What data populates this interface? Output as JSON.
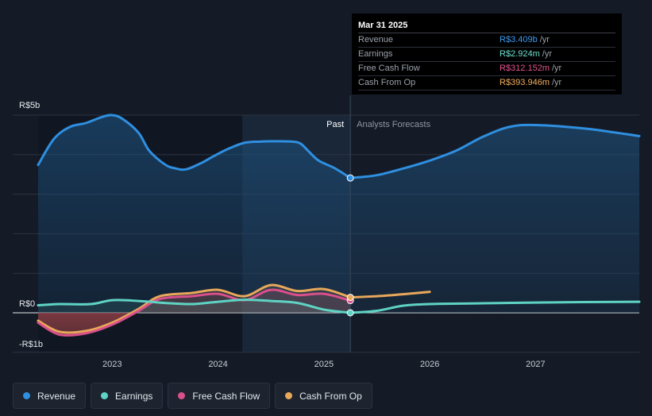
{
  "chart_data": {
    "type": "line",
    "y_labels": [
      "R$5b",
      "R$0",
      "-R$1b"
    ],
    "ylim": [
      -1,
      5
    ],
    "xlim": [
      2022.3,
      2027.98
    ],
    "x_ticks": [
      {
        "value": 2023,
        "label": "2023"
      },
      {
        "value": 2024,
        "label": "2024"
      },
      {
        "value": 2025,
        "label": "2025"
      },
      {
        "value": 2026,
        "label": "2026"
      },
      {
        "value": 2027,
        "label": "2027"
      }
    ],
    "grid": true,
    "past_label": "Past",
    "forecast_label": "Analysts Forecasts",
    "divider_x": 2025.25,
    "shade_start_x": 2024.23,
    "series": [
      {
        "name": "Revenue",
        "color": "#2f8fe0",
        "points": [
          [
            2022.3,
            3.74
          ],
          [
            2022.45,
            4.4
          ],
          [
            2022.6,
            4.7
          ],
          [
            2022.75,
            4.8
          ],
          [
            2022.9,
            4.95
          ],
          [
            2023.0,
            5.0
          ],
          [
            2023.1,
            4.9
          ],
          [
            2023.25,
            4.55
          ],
          [
            2023.35,
            4.1
          ],
          [
            2023.5,
            3.75
          ],
          [
            2023.6,
            3.65
          ],
          [
            2023.7,
            3.63
          ],
          [
            2023.85,
            3.8
          ],
          [
            2023.95,
            3.95
          ],
          [
            2024.1,
            4.15
          ],
          [
            2024.25,
            4.3
          ],
          [
            2024.4,
            4.33
          ],
          [
            2024.55,
            4.34
          ],
          [
            2024.7,
            4.33
          ],
          [
            2024.78,
            4.28
          ],
          [
            2024.85,
            4.1
          ],
          [
            2024.95,
            3.85
          ],
          [
            2025.1,
            3.66
          ],
          [
            2025.25,
            3.41
          ]
        ],
        "forecast": [
          [
            2025.25,
            3.41
          ],
          [
            2025.5,
            3.48
          ],
          [
            2025.75,
            3.65
          ],
          [
            2026.0,
            3.85
          ],
          [
            2026.25,
            4.1
          ],
          [
            2026.5,
            4.45
          ],
          [
            2026.75,
            4.7
          ],
          [
            2027.0,
            4.75
          ],
          [
            2027.5,
            4.65
          ],
          [
            2027.98,
            4.47
          ]
        ]
      },
      {
        "name": "Earnings",
        "color": "#5fd3c3",
        "points": [
          [
            2022.3,
            0.19
          ],
          [
            2022.5,
            0.22
          ],
          [
            2022.8,
            0.22
          ],
          [
            2023.0,
            0.32
          ],
          [
            2023.25,
            0.3
          ],
          [
            2023.5,
            0.25
          ],
          [
            2023.75,
            0.22
          ],
          [
            2024.0,
            0.28
          ],
          [
            2024.25,
            0.33
          ],
          [
            2024.5,
            0.3
          ],
          [
            2024.75,
            0.25
          ],
          [
            2025.0,
            0.08
          ],
          [
            2025.25,
            0.0
          ]
        ],
        "forecast": [
          [
            2025.25,
            0.0
          ],
          [
            2025.5,
            0.05
          ],
          [
            2025.75,
            0.18
          ],
          [
            2026.0,
            0.22
          ],
          [
            2026.5,
            0.24
          ],
          [
            2027.0,
            0.26
          ],
          [
            2027.98,
            0.28
          ]
        ]
      },
      {
        "name": "Free Cash Flow",
        "color": "#d9508b",
        "points": [
          [
            2022.3,
            -0.25
          ],
          [
            2022.5,
            -0.55
          ],
          [
            2022.75,
            -0.52
          ],
          [
            2023.0,
            -0.3
          ],
          [
            2023.25,
            0.05
          ],
          [
            2023.45,
            0.35
          ],
          [
            2023.75,
            0.42
          ],
          [
            2024.0,
            0.48
          ],
          [
            2024.25,
            0.32
          ],
          [
            2024.5,
            0.58
          ],
          [
            2024.75,
            0.45
          ],
          [
            2025.0,
            0.48
          ],
          [
            2025.25,
            0.31
          ]
        ],
        "forecast": []
      },
      {
        "name": "Cash From Op",
        "color": "#e8a85a",
        "points": [
          [
            2022.3,
            -0.2
          ],
          [
            2022.5,
            -0.48
          ],
          [
            2022.75,
            -0.46
          ],
          [
            2023.0,
            -0.25
          ],
          [
            2023.25,
            0.1
          ],
          [
            2023.45,
            0.42
          ],
          [
            2023.75,
            0.5
          ],
          [
            2024.0,
            0.58
          ],
          [
            2024.25,
            0.42
          ],
          [
            2024.5,
            0.7
          ],
          [
            2024.75,
            0.55
          ],
          [
            2025.0,
            0.6
          ],
          [
            2025.25,
            0.39
          ]
        ],
        "forecast": [
          [
            2025.25,
            0.39
          ],
          [
            2025.5,
            0.42
          ],
          [
            2025.75,
            0.47
          ],
          [
            2026.0,
            0.53
          ]
        ]
      }
    ]
  },
  "tooltip": {
    "date": "Mar 31 2025",
    "rows": [
      {
        "name": "Revenue",
        "value": "R$3.409b",
        "unit": "/yr",
        "color": "#3b9bf0"
      },
      {
        "name": "Earnings",
        "value": "R$2.924m",
        "unit": "/yr",
        "color": "#6ee0cf"
      },
      {
        "name": "Free Cash Flow",
        "value": "R$312.152m",
        "unit": "/yr",
        "color": "#e2528f"
      },
      {
        "name": "Cash From Op",
        "value": "R$393.946m",
        "unit": "/yr",
        "color": "#f0ae5e"
      }
    ]
  },
  "legend": [
    {
      "label": "Revenue",
      "color": "#2f8fe0"
    },
    {
      "label": "Earnings",
      "color": "#5fd3c3"
    },
    {
      "label": "Free Cash Flow",
      "color": "#d9508b"
    },
    {
      "label": "Cash From Op",
      "color": "#e8a85a"
    }
  ]
}
